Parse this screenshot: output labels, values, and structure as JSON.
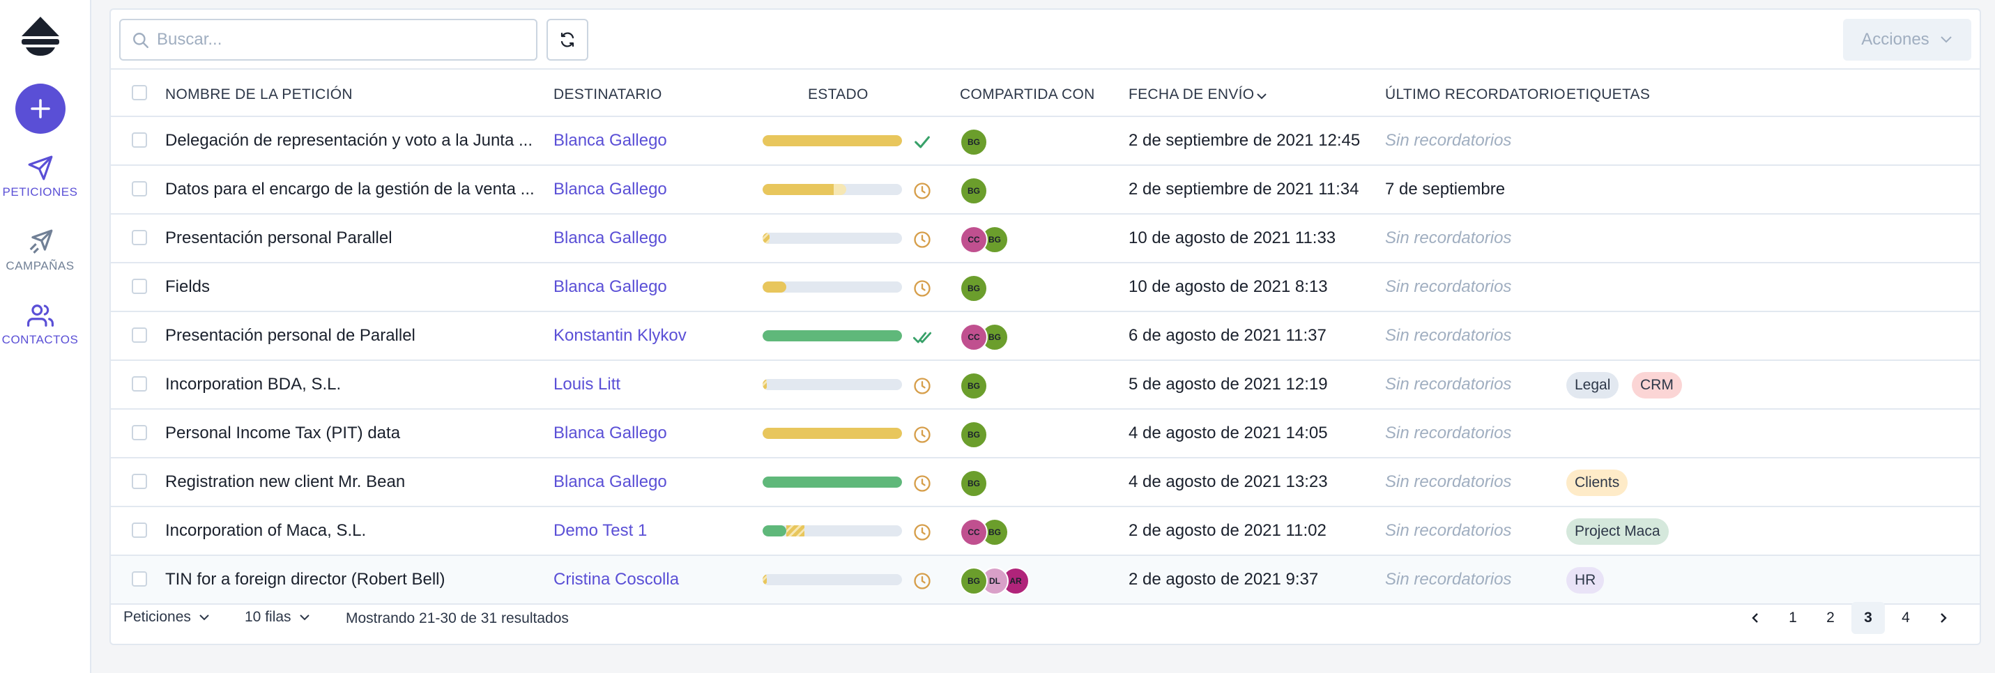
{
  "sidebar": {
    "items": [
      {
        "label": "PETICIONES",
        "icon": "paper-plane-icon"
      },
      {
        "label": "CAMPAÑAS",
        "icon": "multi-plane-icon"
      },
      {
        "label": "CONTACTOS",
        "icon": "users-icon"
      }
    ]
  },
  "toolbar": {
    "search_placeholder": "Buscar...",
    "actions_label": "Acciones"
  },
  "table": {
    "columns": [
      "NOMBRE DE LA PETICIÓN",
      "DESTINATARIO",
      "ESTADO",
      "COMPARTIDA CON",
      "FECHA DE ENVÍO",
      "ÚLTIMO RECORDATORIO",
      "ETIQUETAS"
    ],
    "rows": [
      {
        "name": "Delegación de representación y voto a la Junta ...",
        "recipient": "Blanca Gallego",
        "progress_fraction": 1.0,
        "status": "completed",
        "shared": [
          "BG"
        ],
        "date": "2 de septiembre de 2021 12:45",
        "reminder": "Sin recordatorios",
        "tags": []
      },
      {
        "name": "Datos para el encargo de la gestión de la venta ...",
        "recipient": "Blanca Gallego",
        "progress_fraction": 0.6,
        "status": "pending",
        "shared": [
          "BG"
        ],
        "date": "2 de septiembre de 2021 11:34",
        "reminder": "7 de septiembre",
        "tags": []
      },
      {
        "name": "Presentación personal Parallel",
        "recipient": "Blanca Gallego",
        "progress_fraction": 0.05,
        "status": "pending",
        "shared": [
          "CC",
          "BG"
        ],
        "date": "10 de agosto de 2021 11:33",
        "reminder": "Sin recordatorios",
        "tags": []
      },
      {
        "name": "Fields",
        "recipient": "Blanca Gallego",
        "progress_fraction": 0.17,
        "status": "pending",
        "shared": [
          "BG"
        ],
        "date": "10 de agosto de 2021 8:13",
        "reminder": "Sin recordatorios",
        "tags": []
      },
      {
        "name": "Presentación personal de Parallel",
        "recipient": "Konstantin Klykov",
        "progress_fraction": 1.0,
        "status": "closed",
        "shared": [
          "CC",
          "BG"
        ],
        "date": "6 de agosto de 2021 11:37",
        "reminder": "Sin recordatorios",
        "tags": []
      },
      {
        "name": "Incorporation BDA, S.L.",
        "recipient": "Louis Litt",
        "progress_fraction": 0.03,
        "status": "pending",
        "shared": [
          "BG"
        ],
        "date": "5 de agosto de 2021 12:19",
        "reminder": "Sin recordatorios",
        "tags": [
          {
            "label": "Legal",
            "color": "#e2e8f0"
          },
          {
            "label": "CRM",
            "color": "#fbd5d5"
          }
        ]
      },
      {
        "name": "Personal Income Tax (PIT) data",
        "recipient": "Blanca Gallego",
        "progress_fraction": 1.0,
        "status": "pending",
        "shared": [
          "BG"
        ],
        "date": "4 de agosto de 2021 14:05",
        "reminder": "Sin recordatorios",
        "tags": []
      },
      {
        "name": "Registration new client Mr. Bean",
        "recipient": "Blanca Gallego",
        "progress_fraction": 1.0,
        "status": "pending",
        "shared": [
          "BG"
        ],
        "date": "4 de agosto de 2021 13:23",
        "reminder": "Sin recordatorios",
        "tags": [
          {
            "label": "Clients",
            "color": "#feebc8"
          }
        ]
      },
      {
        "name": "Incorporation of Maca, S.L.",
        "recipient": "Demo Test 1",
        "progress_fraction": 0.3,
        "status": "pending",
        "shared": [
          "CC",
          "BG"
        ],
        "date": "2 de agosto de 2021 11:02",
        "reminder": "Sin recordatorios",
        "tags": [
          {
            "label": "Project Maca",
            "color": "#d5e8dc"
          }
        ]
      },
      {
        "name": "TIN for a foreign director (Robert Bell)",
        "recipient": "Cristina Coscolla",
        "progress_fraction": 0.03,
        "status": "pending",
        "shared": [
          "BG",
          "DL",
          "AR"
        ],
        "date": "2 de agosto de 2021 9:37",
        "reminder": "Sin recordatorios",
        "tags": [
          {
            "label": "HR",
            "color": "#e9e3f7"
          }
        ]
      }
    ]
  },
  "footer": {
    "type_select": "Peticiones",
    "rows_select": "10 filas",
    "results_text": "Mostrando 21-30 de 31 resultados",
    "pages": [
      "1",
      "2",
      "3",
      "4"
    ],
    "current_page": "3"
  },
  "colors": {
    "accent": "#5a4fd6",
    "progress_yellow": "#e8c65c",
    "progress_green": "#5fb87a",
    "clock_orange": "#d69e4a",
    "check_green": "#38a169",
    "avatar_BG": "#6b9e2c",
    "avatar_CC": "#c0508f",
    "avatar_DL": "#d9a0c8",
    "avatar_AR": "#b0247a"
  }
}
